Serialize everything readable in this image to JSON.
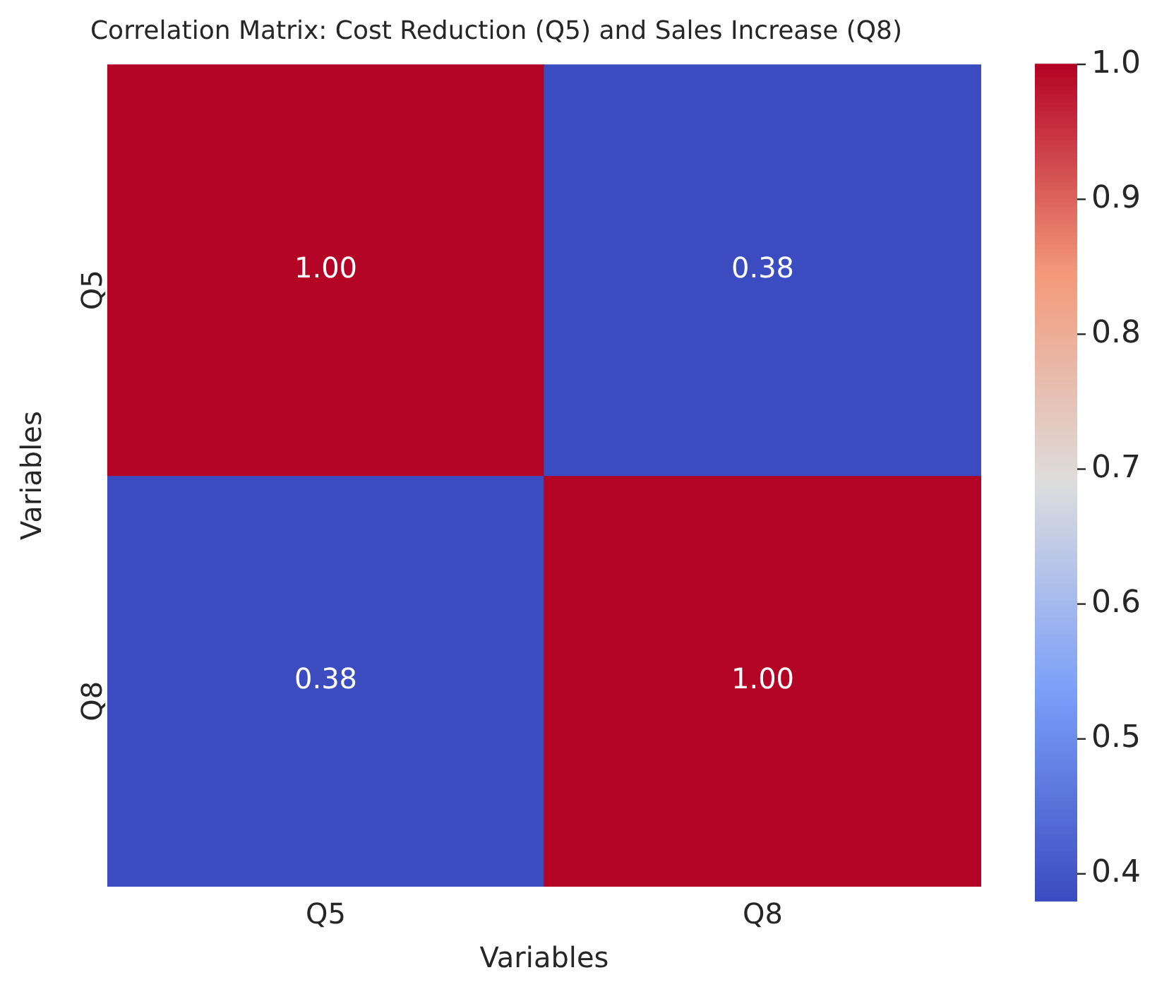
{
  "chart_data": {
    "type": "heatmap",
    "title": "Correlation Matrix: Cost Reduction (Q5) and Sales Increase (Q8)",
    "xlabel": "Variables",
    "ylabel": "Variables",
    "categories": [
      "Q5",
      "Q8"
    ],
    "y_categories": [
      "Q5",
      "Q8"
    ],
    "cells": [
      [
        1.0,
        0.38
      ],
      [
        0.38,
        1.0
      ]
    ],
    "cell_labels": [
      [
        "1.00",
        "0.38"
      ],
      [
        "0.38",
        "1.00"
      ]
    ],
    "clim": [
      0.38,
      1.0
    ],
    "cticks": [
      0.4,
      0.5,
      0.6,
      0.7,
      0.8,
      0.9,
      {
        "value": 1.0,
        "label": "1.0"
      }
    ]
  }
}
